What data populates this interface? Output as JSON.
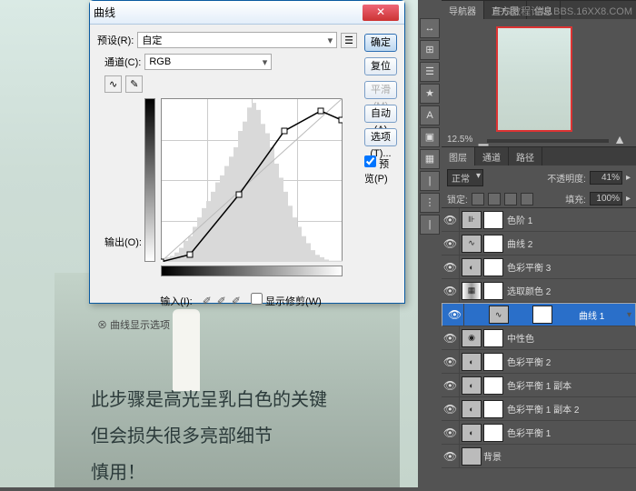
{
  "watermark": "PS教程论坛 BBS.16XX8.COM",
  "photo_overlay": {
    "line1": "此步骤是高光呈乳白色的关键",
    "line2": "但会损失很多亮部细节",
    "line3": "慎用！"
  },
  "dialog": {
    "title": "曲线",
    "preset_label": "预设(R):",
    "preset_value": "自定",
    "channel_label": "通道(C):",
    "channel_value": "RGB",
    "output_label": "输出(O):",
    "input_label": "输入(I):",
    "show_clipping": "显示修剪(W)",
    "show_options": "曲线显示选项",
    "btn_ok": "确定",
    "btn_reset": "复位",
    "btn_smooth": "平滑(M)",
    "btn_auto": "自动(A)",
    "btn_options": "选项(T)...",
    "preview": "预览(P)",
    "curve": {
      "points": [
        [
          0,
          180
        ],
        [
          32,
          172
        ],
        [
          86,
          106
        ],
        [
          136,
          36
        ],
        [
          176,
          14
        ],
        [
          199,
          24
        ]
      ],
      "histogram": [
        2,
        4,
        5,
        8,
        12,
        18,
        22,
        30,
        38,
        46,
        52,
        60,
        68,
        74,
        82,
        90,
        98,
        112,
        120,
        132,
        136,
        130,
        118,
        110,
        98,
        84,
        72,
        60,
        48,
        38,
        30,
        22,
        16,
        10,
        6,
        4,
        2,
        1,
        1,
        1
      ],
      "grid_color": "#cccccc",
      "curve_color": "#000000",
      "hist_color": "#d9d9d9"
    }
  },
  "navigator": {
    "tabs": [
      "导航器",
      "直方图",
      "信息"
    ],
    "active_tab": 0,
    "zoom": "12.5%"
  },
  "layers_panel": {
    "tabs": [
      "图层",
      "通道",
      "路径"
    ],
    "active_tab": 0,
    "blend_mode": "正常",
    "opacity_label": "不透明度:",
    "opacity_value": "41%",
    "lock_label": "锁定:",
    "fill_label": "填充:",
    "fill_value": "100%",
    "selected_index": 4,
    "layers": [
      {
        "name": "色阶 1",
        "type": "levels"
      },
      {
        "name": "曲线 2",
        "type": "curves"
      },
      {
        "name": "色彩平衡 3",
        "type": "colorbal"
      },
      {
        "name": "选取颜色 2",
        "type": "selcolor"
      },
      {
        "name": "曲线 1",
        "type": "curves"
      },
      {
        "name": "中性色",
        "type": "solid"
      },
      {
        "name": "色彩平衡 2",
        "type": "colorbal"
      },
      {
        "name": "色彩平衡 1 副本",
        "type": "colorbal"
      },
      {
        "name": "色彩平衡 1 副本 2",
        "type": "colorbal"
      },
      {
        "name": "色彩平衡 1",
        "type": "colorbal"
      },
      {
        "name": "背景",
        "type": "bg"
      }
    ]
  },
  "tool_icons": [
    "↔",
    "⊞",
    "☰",
    "★",
    "A",
    "▣",
    "▦",
    "|",
    "⋮",
    "|"
  ]
}
